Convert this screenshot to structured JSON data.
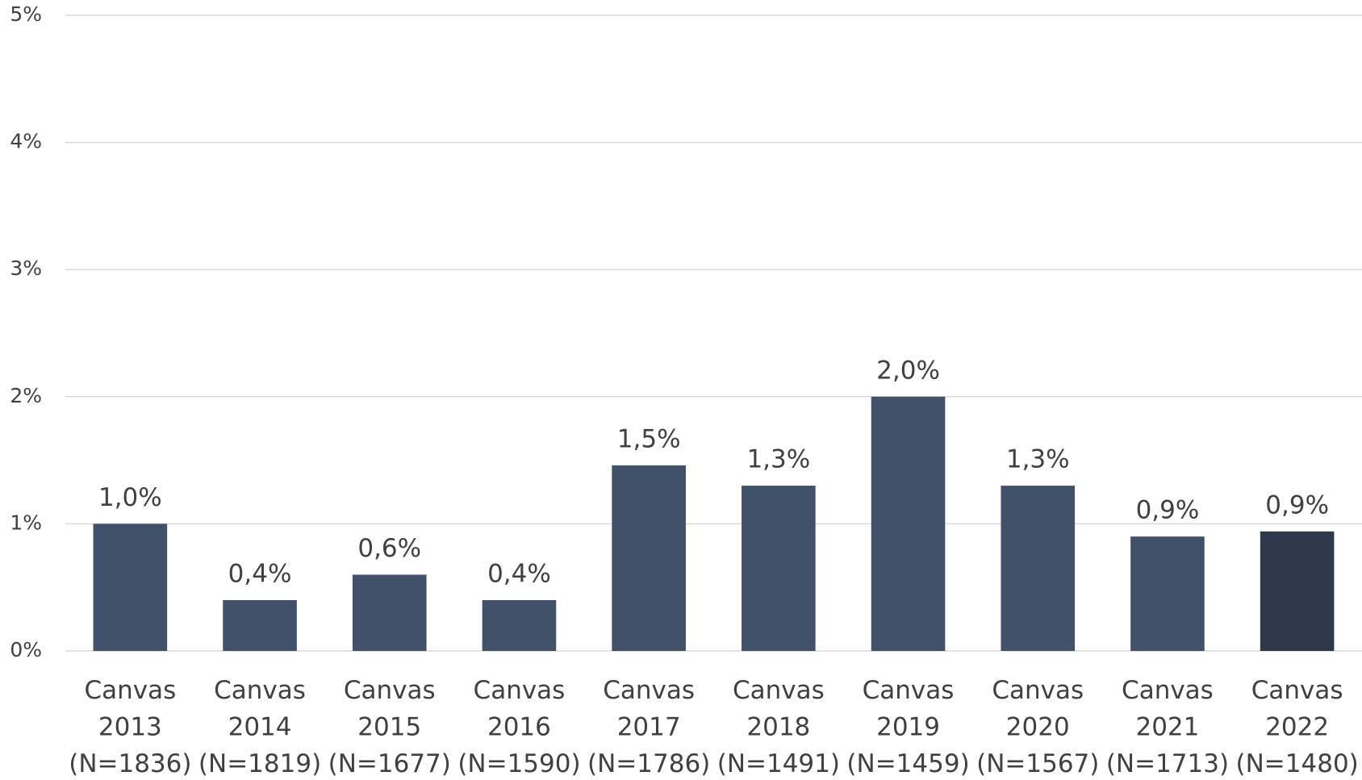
{
  "chart_data": {
    "type": "bar",
    "categories": [
      [
        "Canvas",
        "2013",
        "(N=1836)"
      ],
      [
        "Canvas",
        "2014",
        "(N=1819)"
      ],
      [
        "Canvas",
        "2015",
        "(N=1677)"
      ],
      [
        "Canvas",
        "2016",
        "(N=1590)"
      ],
      [
        "Canvas",
        "2017",
        "(N=1786)"
      ],
      [
        "Canvas",
        "2018",
        "(N=1491)"
      ],
      [
        "Canvas",
        "2019",
        "(N=1459)"
      ],
      [
        "Canvas",
        "2020",
        "(N=1567)"
      ],
      [
        "Canvas",
        "2021",
        "(N=1713)"
      ],
      [
        "Canvas",
        "2022",
        "(N=1480)"
      ]
    ],
    "values": [
      1.0,
      0.4,
      0.6,
      0.4,
      1.46,
      1.3,
      2.0,
      1.3,
      0.9,
      0.94
    ],
    "value_labels": [
      "1,0%",
      "0,4%",
      "0,6%",
      "0,4%",
      "1,5%",
      "1,3%",
      "2,0%",
      "1,3%",
      "0,9%",
      "0,9%"
    ],
    "colors": [
      "#41516a",
      "#41516a",
      "#41516a",
      "#41516a",
      "#41516a",
      "#41516a",
      "#41516a",
      "#41516a",
      "#41516a",
      "#2e3a4b"
    ],
    "ylim": [
      0,
      5
    ],
    "yticks": [
      {
        "value": 0,
        "label": "0%"
      },
      {
        "value": 1,
        "label": "1%"
      },
      {
        "value": 2,
        "label": "2%"
      },
      {
        "value": 3,
        "label": "3%"
      },
      {
        "value": 4,
        "label": "4%"
      },
      {
        "value": 5,
        "label": "5%"
      }
    ],
    "grid": true
  }
}
